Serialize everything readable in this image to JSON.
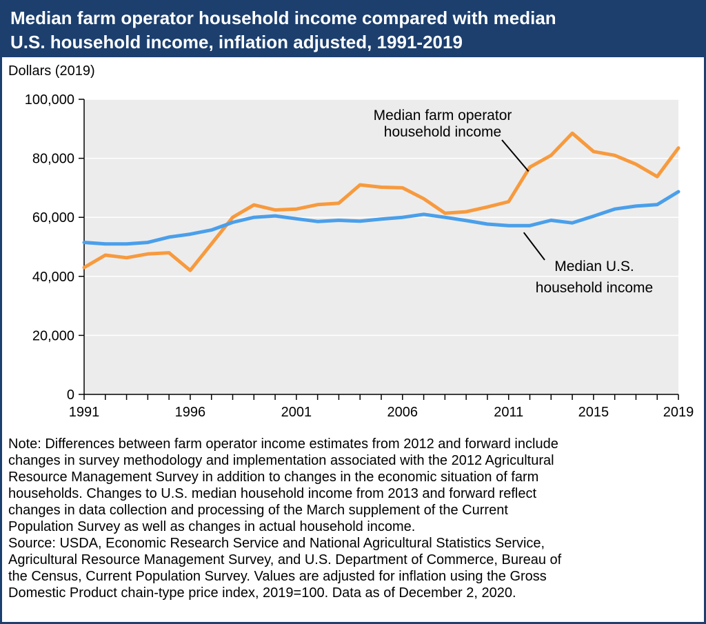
{
  "title_lines": [
    "Median farm operator household income compared with median",
    "U.S. household income, inflation adjusted, 1991-2019"
  ],
  "unit_label": "Dollars (2019)",
  "colors": {
    "header_bg": "#1c3f6e",
    "plot_bg": "#ececec",
    "farm": "#f79a3e",
    "us": "#4a9fea",
    "gridline": "#ffffff"
  },
  "note_lines": [
    "Note: Differences between farm operator income estimates from 2012 and forward include",
    "changes in survey methodology and implementation associated with the 2012 Agricultural",
    "Resource Management Survey in addition to changes in the economic situation of farm",
    "households. Changes to U.S. median household income from 2013 and forward reflect",
    "changes in data collection and processing of the March supplement of the Current",
    "Population Survey as well as changes in actual household income.",
    "Source: USDA, Economic Research Service and National Agricultural Statistics Service,",
    "Agricultural Resource Management Survey, and  U.S. Department of Commerce, Bureau of",
    "the Census, Current Population Survey. Values are adjusted for inflation using the Gross",
    "Domestic Product chain-type price index, 2019=100. Data as of December 2, 2020."
  ],
  "chart_data": {
    "type": "line",
    "title": "Median farm operator household income compared with median U.S. household income, inflation adjusted, 1991-2019",
    "ylabel": "Dollars (2019)",
    "xlabel": "",
    "xlim": [
      1991,
      2019
    ],
    "ylim": [
      0,
      100000
    ],
    "grid": "horizontal",
    "legend": "inline annotations",
    "x_tick_labels": [
      "1991",
      "1996",
      "2001",
      "2006",
      "2011",
      "2015",
      "2019"
    ],
    "y_tick_labels": [
      "0",
      "20,000",
      "40,000",
      "60,000",
      "80,000",
      "100,000"
    ],
    "y_tick_values": [
      0,
      20000,
      40000,
      60000,
      80000,
      100000
    ],
    "x": [
      1991,
      1992,
      1993,
      1994,
      1995,
      1996,
      1997,
      1998,
      1999,
      2000,
      2001,
      2002,
      2003,
      2004,
      2005,
      2006,
      2007,
      2008,
      2009,
      2010,
      2011,
      2012,
      2013,
      2014,
      2015,
      2016,
      2017,
      2018,
      2019
    ],
    "series": [
      {
        "name": "Median farm operator household income",
        "label_lines": [
          "Median farm operator",
          "household income"
        ],
        "values": [
          43000,
          47200,
          46300,
          47600,
          48000,
          42000,
          51000,
          60000,
          64200,
          62500,
          62800,
          64300,
          64800,
          71000,
          70200,
          70000,
          66300,
          61400,
          61900,
          63500,
          65300,
          77000,
          81000,
          88500,
          82300,
          81000,
          78000,
          73800,
          83500
        ]
      },
      {
        "name": "Median U.S. household income",
        "label_lines": [
          "Median U.S.",
          "household income"
        ],
        "values": [
          51500,
          51000,
          51000,
          51500,
          53300,
          54300,
          55700,
          58300,
          60000,
          60500,
          59500,
          58600,
          59000,
          58700,
          59400,
          60000,
          61000,
          60000,
          58900,
          57700,
          57200,
          57200,
          59000,
          58100,
          60400,
          62800,
          63800,
          64300,
          68700
        ]
      }
    ]
  }
}
